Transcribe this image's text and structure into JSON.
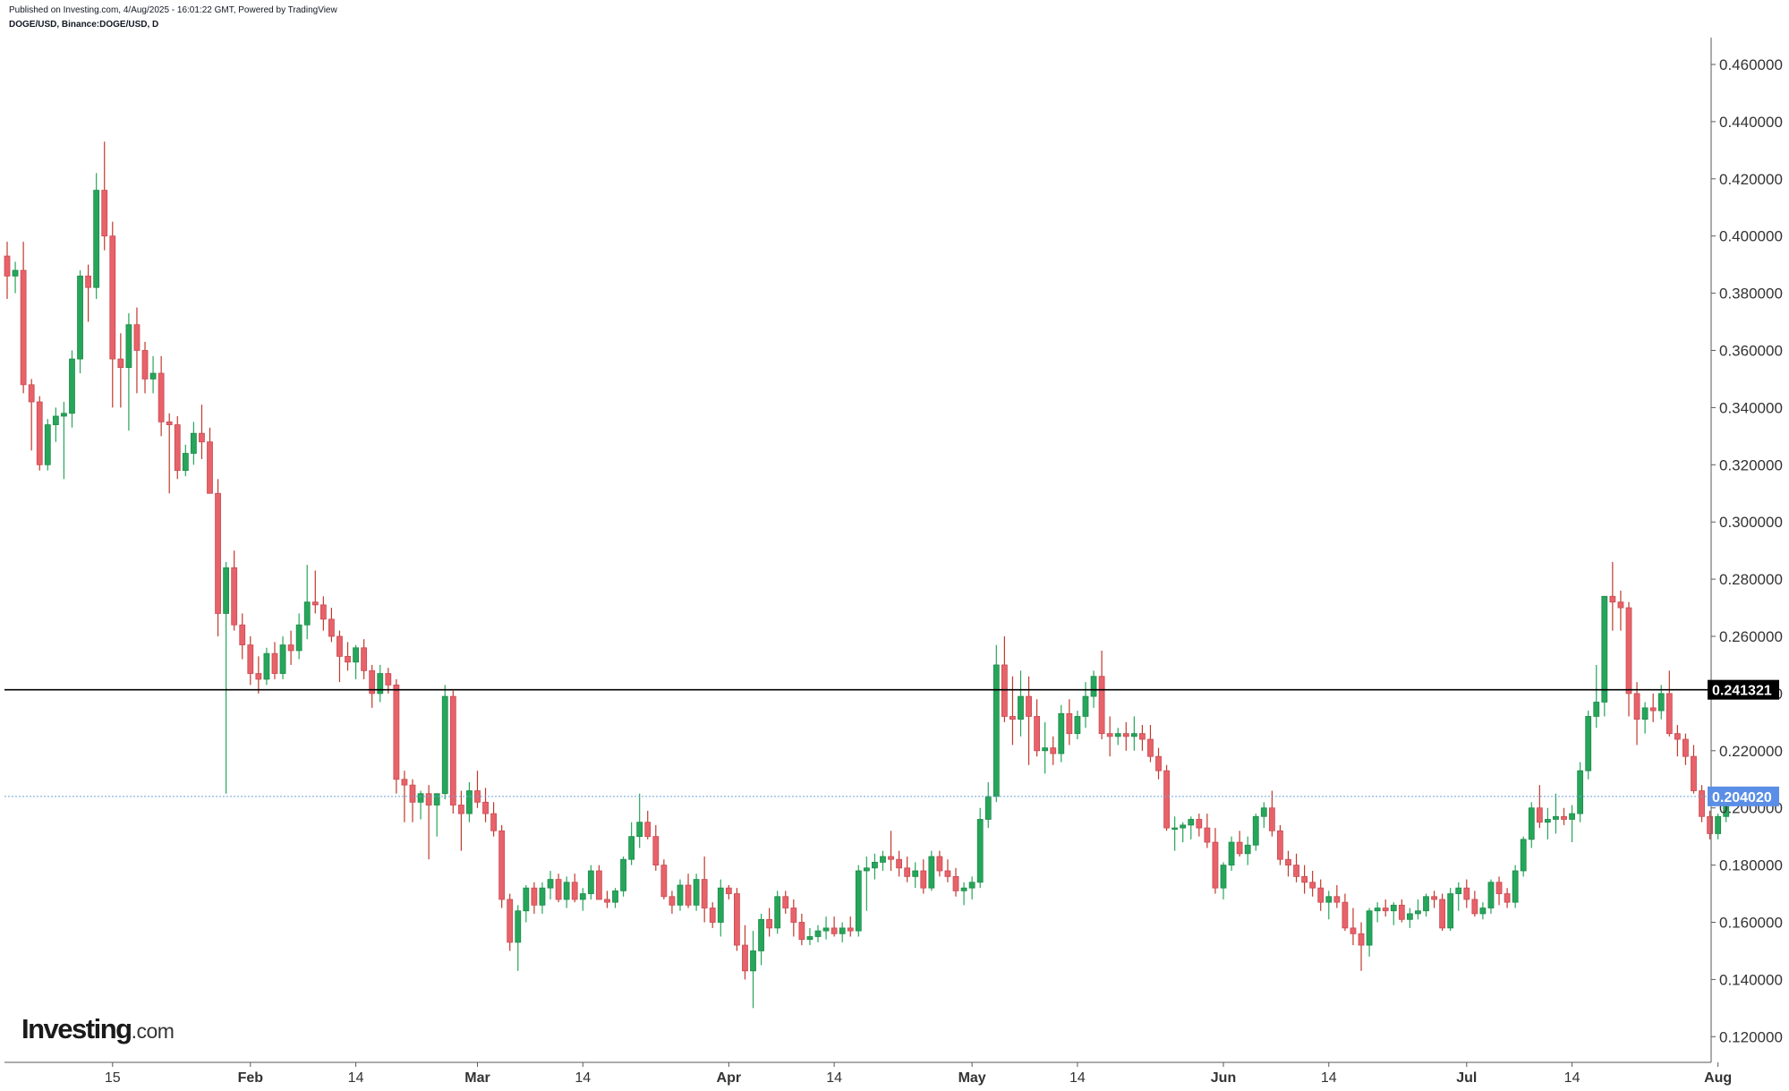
{
  "header": {
    "published": "Published on Investing.com, 4/Aug/2025 - 16:01:22 GMT, Powered by TradingView",
    "symbol": "DOGE/USD, Binance:DOGE/USD, D"
  },
  "logo": {
    "main": "Investing",
    "suffix": ".com"
  },
  "colors": {
    "up": "#26a65b",
    "down": "#e8626a",
    "wick_up": "#26a65b",
    "wick_down": "#c0392b",
    "resistance": "#000000",
    "current_line": "#6ea5d9",
    "current_badge": "#5b8ee6"
  },
  "chart_data": {
    "type": "candlestick",
    "title": "DOGE/USD, Binance:DOGE/USD, D",
    "ylim": [
      0.11,
      0.47
    ],
    "y_ticks": [
      "0.460000",
      "0.440000",
      "0.420000",
      "0.400000",
      "0.380000",
      "0.360000",
      "0.340000",
      "0.320000",
      "0.300000",
      "0.280000",
      "0.260000",
      "0.240000",
      "0.220000",
      "0.200000",
      "0.180000",
      "0.160000",
      "0.140000",
      "0.120000"
    ],
    "x_ticks": [
      {
        "label": "15",
        "date": "2025-01-15"
      },
      {
        "label": "Feb",
        "date": "2025-02-01"
      },
      {
        "label": "14",
        "date": "2025-02-14"
      },
      {
        "label": "Mar",
        "date": "2025-03-01"
      },
      {
        "label": "14",
        "date": "2025-03-14"
      },
      {
        "label": "Apr",
        "date": "2025-04-01"
      },
      {
        "label": "14",
        "date": "2025-04-14"
      },
      {
        "label": "May",
        "date": "2025-05-01"
      },
      {
        "label": "14",
        "date": "2025-05-14"
      },
      {
        "label": "Jun",
        "date": "2025-06-01"
      },
      {
        "label": "14",
        "date": "2025-06-14"
      },
      {
        "label": "Jul",
        "date": "2025-07-01"
      },
      {
        "label": "14",
        "date": "2025-07-14"
      },
      {
        "label": "Aug",
        "date": "2025-08-01"
      }
    ],
    "horizontal_line": {
      "value": 0.241321,
      "label": "0.241321"
    },
    "current_price": {
      "value": 0.20402,
      "label": "0.204020"
    },
    "grid": false,
    "candles_ohlc": [
      [
        0.393,
        0.398,
        0.378,
        0.386
      ],
      [
        0.386,
        0.391,
        0.38,
        0.388
      ],
      [
        0.388,
        0.398,
        0.345,
        0.348
      ],
      [
        0.348,
        0.35,
        0.325,
        0.342
      ],
      [
        0.342,
        0.344,
        0.318,
        0.32
      ],
      [
        0.32,
        0.336,
        0.318,
        0.334
      ],
      [
        0.334,
        0.34,
        0.328,
        0.337
      ],
      [
        0.337,
        0.342,
        0.315,
        0.338
      ],
      [
        0.338,
        0.36,
        0.333,
        0.357
      ],
      [
        0.357,
        0.388,
        0.352,
        0.386
      ],
      [
        0.386,
        0.39,
        0.37,
        0.382
      ],
      [
        0.382,
        0.422,
        0.378,
        0.416
      ],
      [
        0.416,
        0.433,
        0.395,
        0.4
      ],
      [
        0.4,
        0.405,
        0.34,
        0.357
      ],
      [
        0.357,
        0.366,
        0.34,
        0.354
      ],
      [
        0.354,
        0.373,
        0.332,
        0.369
      ],
      [
        0.369,
        0.375,
        0.345,
        0.36
      ],
      [
        0.36,
        0.363,
        0.345,
        0.35
      ],
      [
        0.35,
        0.358,
        0.345,
        0.352
      ],
      [
        0.352,
        0.358,
        0.33,
        0.335
      ],
      [
        0.335,
        0.338,
        0.31,
        0.334
      ],
      [
        0.334,
        0.337,
        0.315,
        0.318
      ],
      [
        0.318,
        0.327,
        0.316,
        0.324
      ],
      [
        0.324,
        0.335,
        0.32,
        0.331
      ],
      [
        0.331,
        0.341,
        0.322,
        0.328
      ],
      [
        0.328,
        0.333,
        0.31,
        0.31
      ],
      [
        0.31,
        0.315,
        0.26,
        0.268
      ],
      [
        0.268,
        0.286,
        0.205,
        0.284
      ],
      [
        0.284,
        0.29,
        0.262,
        0.264
      ],
      [
        0.264,
        0.268,
        0.252,
        0.257
      ],
      [
        0.257,
        0.26,
        0.243,
        0.247
      ],
      [
        0.247,
        0.253,
        0.24,
        0.245
      ],
      [
        0.245,
        0.256,
        0.243,
        0.254
      ],
      [
        0.254,
        0.258,
        0.245,
        0.247
      ],
      [
        0.247,
        0.26,
        0.245,
        0.257
      ],
      [
        0.257,
        0.262,
        0.25,
        0.255
      ],
      [
        0.255,
        0.268,
        0.252,
        0.264
      ],
      [
        0.264,
        0.285,
        0.259,
        0.272
      ],
      [
        0.272,
        0.283,
        0.268,
        0.271
      ],
      [
        0.271,
        0.274,
        0.262,
        0.266
      ],
      [
        0.266,
        0.27,
        0.258,
        0.26
      ],
      [
        0.26,
        0.262,
        0.244,
        0.253
      ],
      [
        0.253,
        0.258,
        0.248,
        0.251
      ],
      [
        0.251,
        0.257,
        0.245,
        0.256
      ],
      [
        0.256,
        0.259,
        0.245,
        0.248
      ],
      [
        0.248,
        0.25,
        0.235,
        0.24
      ],
      [
        0.24,
        0.25,
        0.237,
        0.247
      ],
      [
        0.247,
        0.249,
        0.24,
        0.243
      ],
      [
        0.243,
        0.245,
        0.205,
        0.21
      ],
      [
        0.21,
        0.213,
        0.195,
        0.208
      ],
      [
        0.208,
        0.21,
        0.195,
        0.202
      ],
      [
        0.202,
        0.206,
        0.196,
        0.205
      ],
      [
        0.205,
        0.208,
        0.182,
        0.201
      ],
      [
        0.201,
        0.205,
        0.19,
        0.205
      ],
      [
        0.205,
        0.243,
        0.203,
        0.239
      ],
      [
        0.239,
        0.241,
        0.198,
        0.201
      ],
      [
        0.201,
        0.206,
        0.185,
        0.198
      ],
      [
        0.198,
        0.209,
        0.195,
        0.206
      ],
      [
        0.206,
        0.213,
        0.2,
        0.202
      ],
      [
        0.202,
        0.207,
        0.195,
        0.198
      ],
      [
        0.198,
        0.202,
        0.19,
        0.192
      ],
      [
        0.192,
        0.194,
        0.165,
        0.168
      ],
      [
        0.168,
        0.17,
        0.15,
        0.153
      ],
      [
        0.153,
        0.166,
        0.143,
        0.164
      ],
      [
        0.164,
        0.173,
        0.16,
        0.172
      ],
      [
        0.172,
        0.174,
        0.163,
        0.166
      ],
      [
        0.166,
        0.174,
        0.163,
        0.172
      ],
      [
        0.172,
        0.178,
        0.168,
        0.175
      ],
      [
        0.175,
        0.177,
        0.167,
        0.168
      ],
      [
        0.168,
        0.176,
        0.165,
        0.174
      ],
      [
        0.174,
        0.177,
        0.167,
        0.168
      ],
      [
        0.168,
        0.172,
        0.164,
        0.17
      ],
      [
        0.17,
        0.18,
        0.168,
        0.178
      ],
      [
        0.178,
        0.18,
        0.168,
        0.168
      ],
      [
        0.168,
        0.171,
        0.165,
        0.167
      ],
      [
        0.167,
        0.172,
        0.165,
        0.171
      ],
      [
        0.171,
        0.183,
        0.169,
        0.182
      ],
      [
        0.182,
        0.195,
        0.18,
        0.19
      ],
      [
        0.19,
        0.205,
        0.186,
        0.195
      ],
      [
        0.195,
        0.199,
        0.189,
        0.19
      ],
      [
        0.19,
        0.194,
        0.178,
        0.18
      ],
      [
        0.18,
        0.182,
        0.168,
        0.169
      ],
      [
        0.169,
        0.171,
        0.163,
        0.166
      ],
      [
        0.166,
        0.175,
        0.164,
        0.173
      ],
      [
        0.173,
        0.177,
        0.165,
        0.166
      ],
      [
        0.166,
        0.177,
        0.164,
        0.175
      ],
      [
        0.175,
        0.183,
        0.16,
        0.165
      ],
      [
        0.165,
        0.167,
        0.158,
        0.16
      ],
      [
        0.16,
        0.175,
        0.155,
        0.172
      ],
      [
        0.172,
        0.173,
        0.168,
        0.17
      ],
      [
        0.17,
        0.172,
        0.15,
        0.152
      ],
      [
        0.152,
        0.159,
        0.14,
        0.143
      ],
      [
        0.143,
        0.157,
        0.13,
        0.15
      ],
      [
        0.15,
        0.163,
        0.145,
        0.161
      ],
      [
        0.161,
        0.165,
        0.155,
        0.158
      ],
      [
        0.158,
        0.171,
        0.156,
        0.169
      ],
      [
        0.169,
        0.171,
        0.163,
        0.165
      ],
      [
        0.165,
        0.168,
        0.155,
        0.16
      ],
      [
        0.16,
        0.163,
        0.152,
        0.154
      ],
      [
        0.154,
        0.158,
        0.152,
        0.155
      ],
      [
        0.155,
        0.159,
        0.153,
        0.157
      ],
      [
        0.157,
        0.162,
        0.154,
        0.158
      ],
      [
        0.158,
        0.162,
        0.155,
        0.156
      ],
      [
        0.156,
        0.16,
        0.153,
        0.158
      ],
      [
        0.158,
        0.162,
        0.155,
        0.157
      ],
      [
        0.157,
        0.18,
        0.155,
        0.178
      ],
      [
        0.178,
        0.183,
        0.164,
        0.179
      ],
      [
        0.179,
        0.184,
        0.175,
        0.181
      ],
      [
        0.181,
        0.185,
        0.178,
        0.183
      ],
      [
        0.183,
        0.192,
        0.178,
        0.182
      ],
      [
        0.182,
        0.185,
        0.176,
        0.179
      ],
      [
        0.179,
        0.183,
        0.174,
        0.176
      ],
      [
        0.176,
        0.181,
        0.172,
        0.178
      ],
      [
        0.178,
        0.182,
        0.17,
        0.172
      ],
      [
        0.172,
        0.185,
        0.171,
        0.183
      ],
      [
        0.183,
        0.185,
        0.176,
        0.178
      ],
      [
        0.178,
        0.182,
        0.174,
        0.176
      ],
      [
        0.176,
        0.179,
        0.169,
        0.171
      ],
      [
        0.171,
        0.174,
        0.166,
        0.172
      ],
      [
        0.172,
        0.176,
        0.168,
        0.174
      ],
      [
        0.174,
        0.2,
        0.172,
        0.196
      ],
      [
        0.196,
        0.209,
        0.193,
        0.204
      ],
      [
        0.204,
        0.257,
        0.202,
        0.25
      ],
      [
        0.25,
        0.26,
        0.23,
        0.232
      ],
      [
        0.232,
        0.246,
        0.222,
        0.231
      ],
      [
        0.231,
        0.248,
        0.225,
        0.239
      ],
      [
        0.239,
        0.246,
        0.215,
        0.232
      ],
      [
        0.232,
        0.238,
        0.218,
        0.22
      ],
      [
        0.22,
        0.23,
        0.212,
        0.221
      ],
      [
        0.221,
        0.225,
        0.215,
        0.219
      ],
      [
        0.219,
        0.236,
        0.216,
        0.233
      ],
      [
        0.233,
        0.238,
        0.222,
        0.226
      ],
      [
        0.226,
        0.234,
        0.224,
        0.232
      ],
      [
        0.232,
        0.244,
        0.228,
        0.239
      ],
      [
        0.239,
        0.248,
        0.235,
        0.246
      ],
      [
        0.246,
        0.255,
        0.224,
        0.226
      ],
      [
        0.226,
        0.232,
        0.218,
        0.225
      ],
      [
        0.225,
        0.228,
        0.222,
        0.226
      ],
      [
        0.226,
        0.23,
        0.22,
        0.225
      ],
      [
        0.225,
        0.232,
        0.22,
        0.226
      ],
      [
        0.226,
        0.229,
        0.22,
        0.224
      ],
      [
        0.224,
        0.229,
        0.216,
        0.218
      ],
      [
        0.218,
        0.221,
        0.21,
        0.213
      ],
      [
        0.213,
        0.215,
        0.192,
        0.193
      ],
      [
        0.193,
        0.197,
        0.185,
        0.193
      ],
      [
        0.193,
        0.195,
        0.188,
        0.194
      ],
      [
        0.194,
        0.197,
        0.189,
        0.196
      ],
      [
        0.196,
        0.198,
        0.19,
        0.193
      ],
      [
        0.193,
        0.198,
        0.186,
        0.188
      ],
      [
        0.188,
        0.193,
        0.17,
        0.172
      ],
      [
        0.172,
        0.181,
        0.168,
        0.18
      ],
      [
        0.18,
        0.19,
        0.178,
        0.188
      ],
      [
        0.188,
        0.192,
        0.183,
        0.184
      ],
      [
        0.184,
        0.19,
        0.18,
        0.187
      ],
      [
        0.187,
        0.198,
        0.185,
        0.197
      ],
      [
        0.197,
        0.202,
        0.193,
        0.2
      ],
      [
        0.2,
        0.206,
        0.19,
        0.192
      ],
      [
        0.192,
        0.194,
        0.18,
        0.182
      ],
      [
        0.182,
        0.185,
        0.176,
        0.18
      ],
      [
        0.18,
        0.184,
        0.174,
        0.176
      ],
      [
        0.176,
        0.18,
        0.17,
        0.174
      ],
      [
        0.174,
        0.178,
        0.169,
        0.172
      ],
      [
        0.172,
        0.175,
        0.164,
        0.167
      ],
      [
        0.167,
        0.171,
        0.161,
        0.169
      ],
      [
        0.169,
        0.173,
        0.165,
        0.167
      ],
      [
        0.167,
        0.17,
        0.157,
        0.158
      ],
      [
        0.158,
        0.165,
        0.152,
        0.156
      ],
      [
        0.156,
        0.16,
        0.143,
        0.152
      ],
      [
        0.152,
        0.165,
        0.148,
        0.164
      ],
      [
        0.164,
        0.167,
        0.16,
        0.165
      ],
      [
        0.165,
        0.168,
        0.162,
        0.164
      ],
      [
        0.164,
        0.167,
        0.159,
        0.166
      ],
      [
        0.166,
        0.168,
        0.16,
        0.161
      ],
      [
        0.161,
        0.165,
        0.158,
        0.163
      ],
      [
        0.163,
        0.168,
        0.161,
        0.164
      ],
      [
        0.164,
        0.17,
        0.162,
        0.169
      ],
      [
        0.169,
        0.171,
        0.165,
        0.168
      ],
      [
        0.168,
        0.17,
        0.157,
        0.158
      ],
      [
        0.158,
        0.172,
        0.157,
        0.17
      ],
      [
        0.17,
        0.174,
        0.164,
        0.172
      ],
      [
        0.172,
        0.175,
        0.165,
        0.168
      ],
      [
        0.168,
        0.171,
        0.162,
        0.163
      ],
      [
        0.163,
        0.167,
        0.161,
        0.165
      ],
      [
        0.165,
        0.175,
        0.163,
        0.174
      ],
      [
        0.174,
        0.176,
        0.166,
        0.17
      ],
      [
        0.17,
        0.172,
        0.165,
        0.167
      ],
      [
        0.167,
        0.18,
        0.165,
        0.178
      ],
      [
        0.178,
        0.19,
        0.176,
        0.189
      ],
      [
        0.189,
        0.202,
        0.186,
        0.2
      ],
      [
        0.2,
        0.208,
        0.193,
        0.195
      ],
      [
        0.195,
        0.2,
        0.189,
        0.196
      ],
      [
        0.196,
        0.205,
        0.191,
        0.197
      ],
      [
        0.197,
        0.2,
        0.194,
        0.196
      ],
      [
        0.196,
        0.201,
        0.188,
        0.198
      ],
      [
        0.198,
        0.216,
        0.195,
        0.213
      ],
      [
        0.213,
        0.234,
        0.21,
        0.232
      ],
      [
        0.232,
        0.25,
        0.228,
        0.237
      ],
      [
        0.237,
        0.271,
        0.232,
        0.274
      ],
      [
        0.274,
        0.286,
        0.262,
        0.272
      ],
      [
        0.272,
        0.276,
        0.262,
        0.27
      ],
      [
        0.27,
        0.272,
        0.232,
        0.24
      ],
      [
        0.24,
        0.244,
        0.222,
        0.231
      ],
      [
        0.231,
        0.237,
        0.226,
        0.235
      ],
      [
        0.235,
        0.24,
        0.23,
        0.234
      ],
      [
        0.234,
        0.243,
        0.231,
        0.24
      ],
      [
        0.24,
        0.248,
        0.225,
        0.226
      ],
      [
        0.226,
        0.229,
        0.218,
        0.224
      ],
      [
        0.224,
        0.226,
        0.215,
        0.218
      ],
      [
        0.218,
        0.222,
        0.205,
        0.206
      ],
      [
        0.206,
        0.208,
        0.195,
        0.197
      ],
      [
        0.197,
        0.199,
        0.189,
        0.191
      ],
      [
        0.191,
        0.198,
        0.189,
        0.197
      ],
      [
        0.197,
        0.205,
        0.195,
        0.20402
      ]
    ]
  }
}
